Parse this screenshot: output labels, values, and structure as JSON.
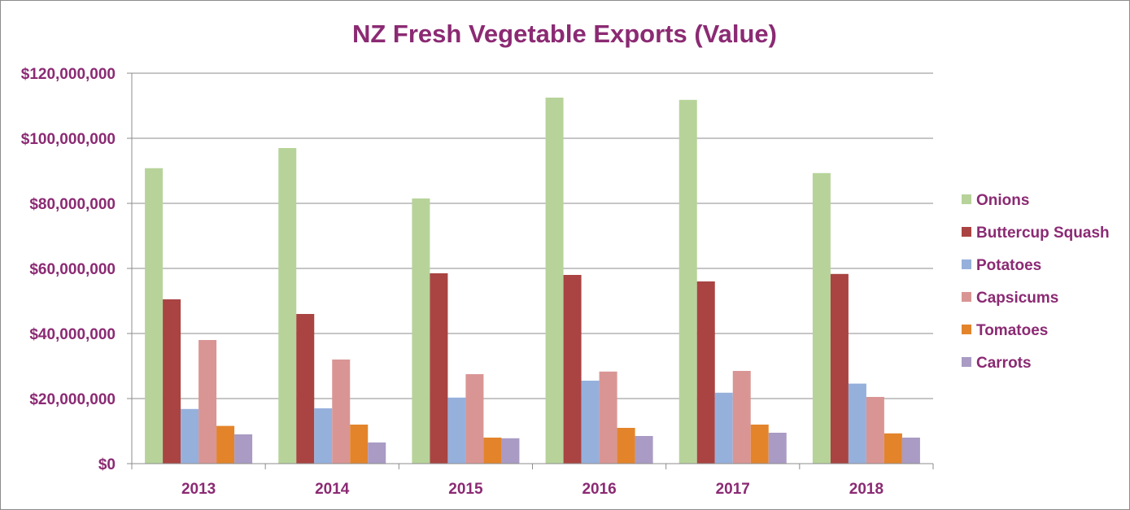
{
  "chart_data": {
    "type": "bar",
    "title": "NZ Fresh Vegetable Exports (Value)",
    "xlabel": "",
    "ylabel": "",
    "categories": [
      "2013",
      "2014",
      "2015",
      "2016",
      "2017",
      "2018"
    ],
    "ylim": [
      0,
      120000000
    ],
    "yticks": [
      0,
      20000000,
      40000000,
      60000000,
      80000000,
      100000000,
      120000000
    ],
    "ytick_labels": [
      "$0",
      "$20,000,000",
      "$40,000,000",
      "$60,000,000",
      "$80,000,000",
      "$100,000,000",
      "$120,000,000"
    ],
    "grid": true,
    "legend_position": "right",
    "series": [
      {
        "name": "Onions",
        "color": "#b7d39a",
        "values": [
          90800000,
          97000000,
          81500000,
          112500000,
          111800000,
          89300000
        ]
      },
      {
        "name": "Buttercup Squash",
        "color": "#a94442",
        "values": [
          50500000,
          46000000,
          58500000,
          58000000,
          56000000,
          58300000
        ]
      },
      {
        "name": "Potatoes",
        "color": "#96b0dc",
        "values": [
          16800000,
          17000000,
          20300000,
          25500000,
          21800000,
          24600000
        ]
      },
      {
        "name": "Capsicums",
        "color": "#d99594",
        "values": [
          38000000,
          32000000,
          27500000,
          28300000,
          28500000,
          20500000
        ]
      },
      {
        "name": "Tomatoes",
        "color": "#e3842b",
        "values": [
          11600000,
          12000000,
          8000000,
          11000000,
          12000000,
          9300000
        ]
      },
      {
        "name": "Carrots",
        "color": "#a99bc4",
        "values": [
          9000000,
          6500000,
          7800000,
          8500000,
          9500000,
          8000000
        ]
      }
    ]
  }
}
